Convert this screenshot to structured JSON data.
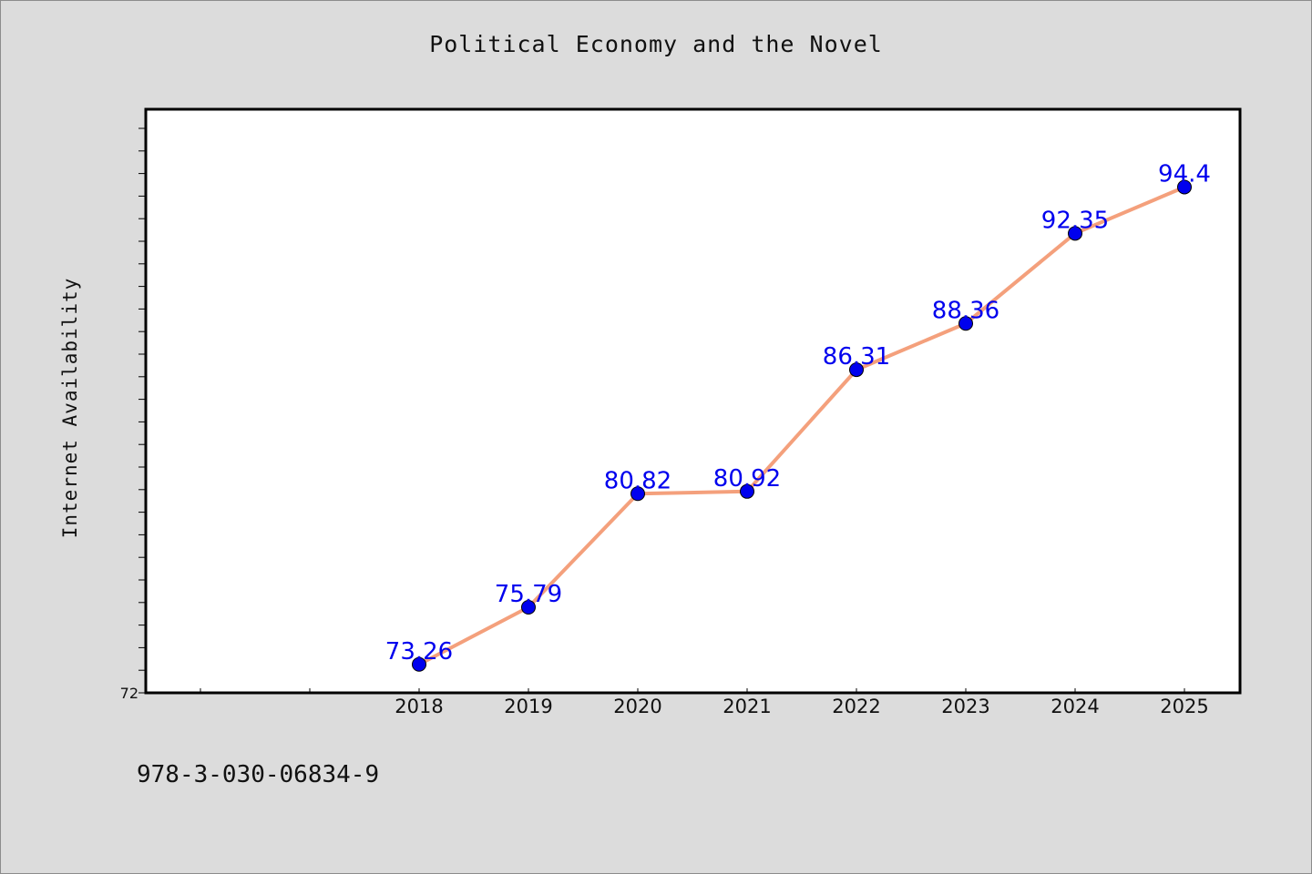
{
  "title": "Political Economy and the Novel",
  "footer_text": "978-3-030-06834-9",
  "colors": {
    "background": "#dcdcdc",
    "plot_background": "#ffffff",
    "line": "#f4a07c",
    "marker": "#0000ee",
    "label": "#0000ee"
  },
  "chart_data": {
    "type": "line",
    "title": "Political Economy and the Novel",
    "xlabel": "",
    "ylabel": "Internet Availability",
    "x": [
      "2018",
      "2019",
      "2020",
      "2021",
      "2022",
      "2023",
      "2024",
      "2025"
    ],
    "series": [
      {
        "values": [
          73.26,
          75.79,
          80.82,
          80.92,
          86.31,
          88.36,
          92.35,
          94.4
        ],
        "labels": [
          "73.26",
          "75.79",
          "80.82",
          "80.92",
          "86.31",
          "88.36",
          "92.35",
          "94.4"
        ]
      }
    ],
    "y_tick_labels": [
      "72"
    ],
    "ylim": [
      72,
      98
    ],
    "grid": false,
    "legend": "none"
  }
}
